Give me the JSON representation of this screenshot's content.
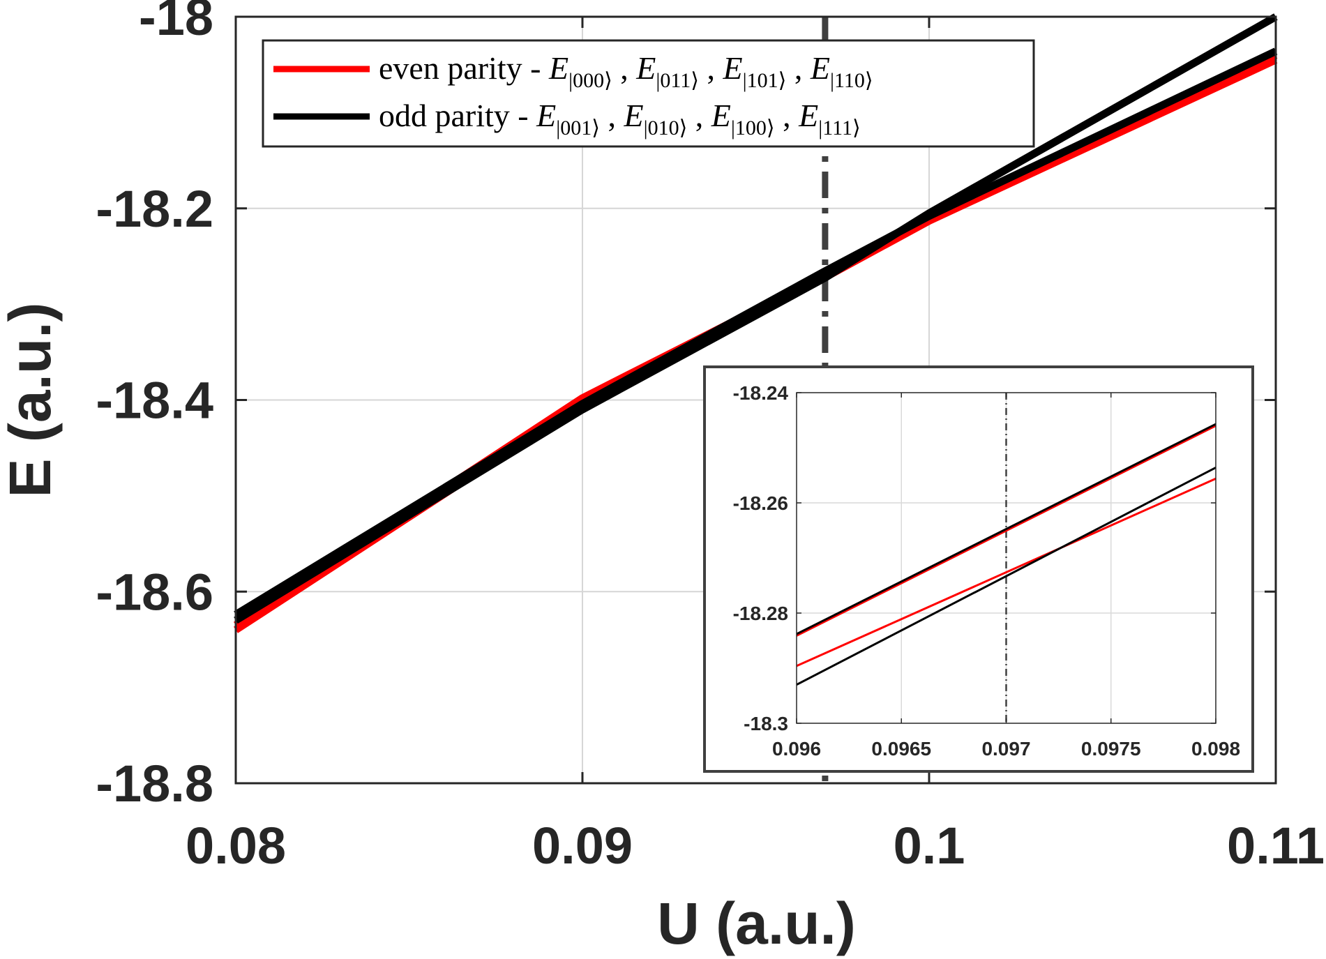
{
  "chart_data": [
    {
      "type": "line",
      "xlabel": "U (a.u.)",
      "ylabel": "E (a.u.)",
      "xlim": [
        0.08,
        0.11
      ],
      "ylim": [
        -18.8,
        -18.0
      ],
      "xticks": [
        0.08,
        0.09,
        0.1,
        0.11
      ],
      "xtick_labels": [
        "0.08",
        "0.09",
        "0.1",
        "0.11"
      ],
      "yticks": [
        -18.8,
        -18.6,
        -18.4,
        -18.2,
        -18.0
      ],
      "ytick_labels": [
        "-18.8",
        "-18.6",
        "-18.4",
        "-18.2",
        "-18"
      ],
      "grid": true,
      "reference_line": {
        "x": 0.097,
        "style": "dash-dot",
        "color": "#404040"
      },
      "legend": {
        "placement": "top-left",
        "entries": [
          {
            "prefix": "even parity - ",
            "symbol": "E",
            "subs": [
              "|000⟩",
              "|011⟩",
              "|101⟩",
              "|110⟩"
            ],
            "color": "#ff0000"
          },
          {
            "prefix": "odd parity - ",
            "symbol": "E",
            "subs": [
              "|001⟩",
              "|010⟩",
              "|100⟩",
              "|111⟩"
            ],
            "color": "#000000"
          }
        ]
      },
      "series": [
        {
          "group": "even parity",
          "color": "#ff0000",
          "x": [
            0.08,
            0.09,
            0.097,
            0.1,
            0.11
          ],
          "y": [
            -18.635,
            -18.398,
            -18.2695,
            -18.21,
            -18.04
          ]
        },
        {
          "group": "even parity",
          "color": "#ff0000",
          "x": [
            0.08,
            0.09,
            0.097,
            0.1,
            0.11
          ],
          "y": [
            -18.64,
            -18.404,
            -18.272,
            -18.213,
            -18.045
          ]
        },
        {
          "group": "odd parity",
          "color": "#000000",
          "x": [
            0.08,
            0.09,
            0.097,
            0.1,
            0.11
          ],
          "y": [
            -18.624,
            -18.404,
            -18.2655,
            -18.208,
            -18.036
          ]
        },
        {
          "group": "odd parity",
          "color": "#000000",
          "x": [
            0.08,
            0.09,
            0.097,
            0.1,
            0.11
          ],
          "y": [
            -18.63,
            -18.41,
            -18.2725,
            -18.205,
            -18.0
          ]
        }
      ]
    },
    {
      "type": "line",
      "role": "inset",
      "xlim": [
        0.096,
        0.098
      ],
      "ylim": [
        -18.3,
        -18.24
      ],
      "xticks": [
        0.096,
        0.0965,
        0.097,
        0.0975,
        0.098
      ],
      "xtick_labels": [
        "0.096",
        "0.0965",
        "0.097",
        "0.0975",
        "0.098"
      ],
      "yticks": [
        -18.3,
        -18.28,
        -18.26,
        -18.24
      ],
      "ytick_labels": [
        "-18.3",
        "-18.28",
        "-18.26",
        "-18.24"
      ],
      "grid": true,
      "reference_line": {
        "x": 0.097,
        "style": "dash-dot",
        "color": "#404040"
      },
      "series": [
        {
          "group": "even parity",
          "color": "#ff0000",
          "x": [
            0.096,
            0.098
          ],
          "y": [
            -18.2896,
            -18.2556
          ]
        },
        {
          "group": "even parity",
          "color": "#ff0000",
          "x": [
            0.096,
            0.098
          ],
          "y": [
            -18.2841,
            -18.246
          ]
        },
        {
          "group": "odd parity",
          "color": "#000000",
          "x": [
            0.096,
            0.098
          ],
          "y": [
            -18.2838,
            -18.2457
          ]
        },
        {
          "group": "odd parity",
          "color": "#000000",
          "x": [
            0.096,
            0.098
          ],
          "y": [
            -18.293,
            -18.2536
          ]
        }
      ]
    }
  ]
}
